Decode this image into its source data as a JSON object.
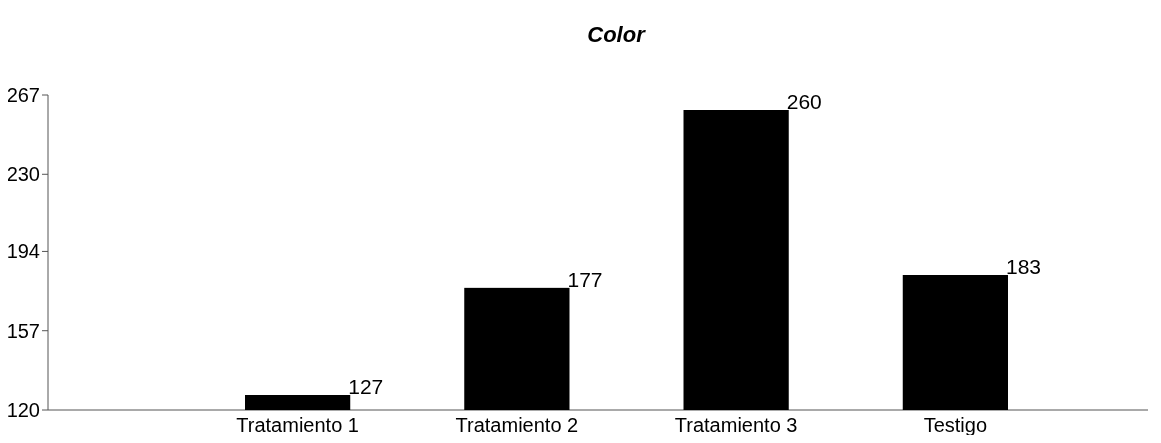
{
  "chart_data": {
    "type": "bar",
    "title": "Color",
    "categories": [
      "Tratamiento 1",
      "Tratamiento 2",
      "Tratamiento 3",
      "Testigo"
    ],
    "values": [
      127,
      177,
      260,
      183
    ],
    "color": "#000000",
    "ylim": [
      120,
      267
    ],
    "yticks": [
      120,
      157,
      194,
      230,
      267
    ],
    "data_labels": true,
    "grid": false
  }
}
